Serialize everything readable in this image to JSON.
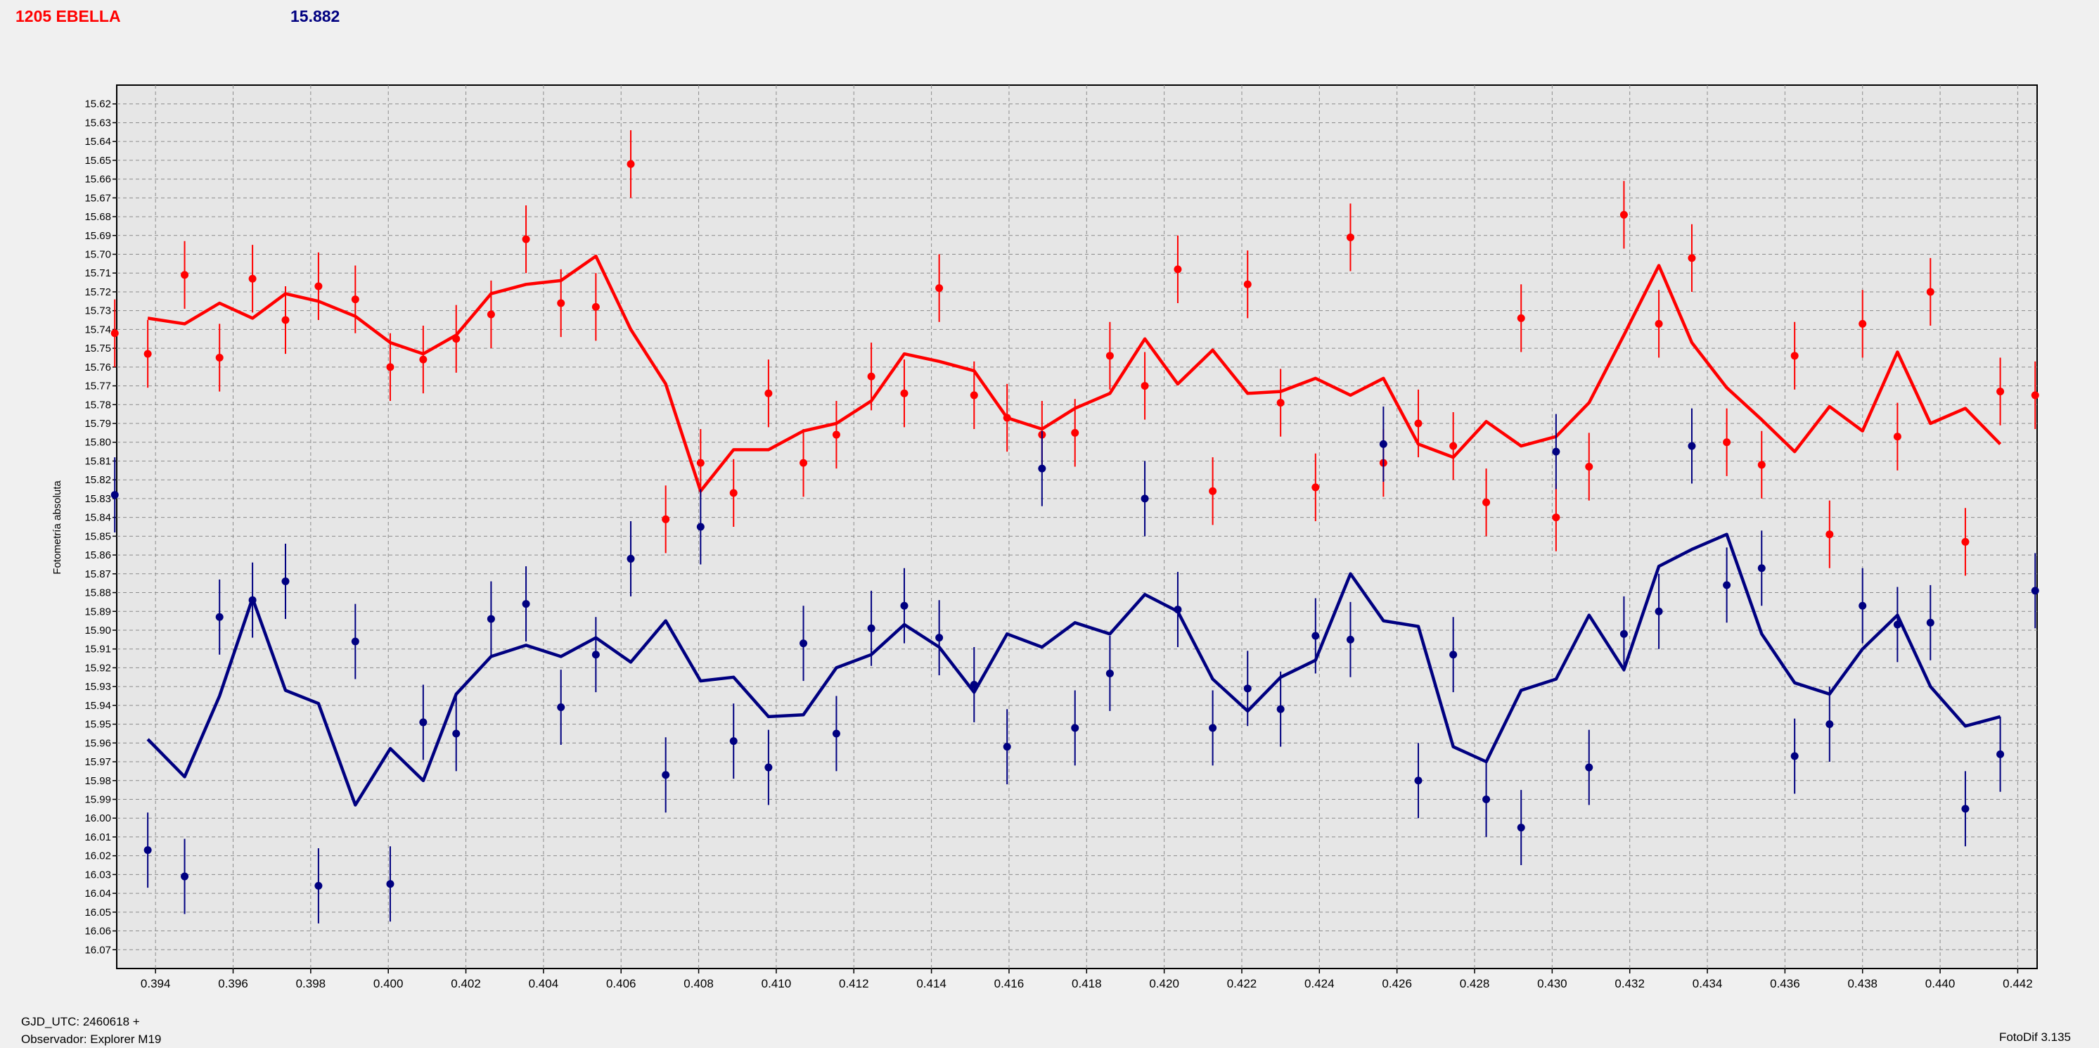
{
  "header": {
    "object_name": "1205 EBELLA",
    "reference_value": "15.882"
  },
  "footer": {
    "line1": "GJD_UTC: 2460618 +",
    "line2": "Observador: Explorer M19",
    "software": "FotoDif 3.135"
  },
  "colors": {
    "series_red": "#ff0000",
    "series_blue": "#000080",
    "grid": "#8c8c8c",
    "plot_bg": "#e6e6e6"
  },
  "chart_data": {
    "type": "scatter",
    "ylabel": "Fotometría absoluta",
    "xlabel": "",
    "xlim": [
      0.393,
      0.4425
    ],
    "ylim": [
      16.08,
      15.61
    ],
    "y_inverted": true,
    "grid": true,
    "x_ticks": [
      "0.394",
      "0.396",
      "0.398",
      "0.400",
      "0.402",
      "0.404",
      "0.406",
      "0.408",
      "0.410",
      "0.412",
      "0.414",
      "0.416",
      "0.418",
      "0.420",
      "0.422",
      "0.424",
      "0.426",
      "0.428",
      "0.430",
      "0.432",
      "0.434",
      "0.436",
      "0.438",
      "0.440",
      "0.442"
    ],
    "y_ticks": [
      "15.62",
      "15.63",
      "15.64",
      "15.65",
      "15.66",
      "15.67",
      "15.68",
      "15.69",
      "15.70",
      "15.71",
      "15.72",
      "15.73",
      "15.74",
      "15.75",
      "15.76",
      "15.77",
      "15.78",
      "15.79",
      "15.80",
      "15.81",
      "15.82",
      "15.83",
      "15.84",
      "15.85",
      "15.86",
      "15.87",
      "15.88",
      "15.89",
      "15.90",
      "15.91",
      "15.92",
      "15.93",
      "15.94",
      "15.95",
      "15.96",
      "15.97",
      "15.98",
      "15.99",
      "16.00",
      "16.01",
      "16.02",
      "16.03",
      "16.04",
      "16.05",
      "16.06",
      "16.07"
    ],
    "series": [
      {
        "color": "#ff0000",
        "error": 0.018,
        "points": [
          [
            0.39295,
            15.742
          ],
          [
            0.3938,
            15.753
          ],
          [
            0.39475,
            15.711
          ],
          [
            0.39565,
            15.755
          ],
          [
            0.3965,
            15.713
          ],
          [
            0.39735,
            15.735
          ],
          [
            0.3982,
            15.717
          ],
          [
            0.39915,
            15.724
          ],
          [
            0.40005,
            15.76
          ],
          [
            0.4009,
            15.756
          ],
          [
            0.40175,
            15.745
          ],
          [
            0.40265,
            15.732
          ],
          [
            0.40355,
            15.692
          ],
          [
            0.40445,
            15.726
          ],
          [
            0.40535,
            15.728
          ],
          [
            0.40625,
            15.652
          ],
          [
            0.40715,
            15.841
          ],
          [
            0.40805,
            15.811
          ],
          [
            0.4089,
            15.827
          ],
          [
            0.4098,
            15.774
          ],
          [
            0.4107,
            15.811
          ],
          [
            0.41155,
            15.796
          ],
          [
            0.41245,
            15.765
          ],
          [
            0.4133,
            15.774
          ],
          [
            0.4142,
            15.718
          ],
          [
            0.4151,
            15.775
          ],
          [
            0.41595,
            15.787
          ],
          [
            0.41685,
            15.796
          ],
          [
            0.4177,
            15.795
          ],
          [
            0.4186,
            15.754
          ],
          [
            0.4195,
            15.77
          ],
          [
            0.42035,
            15.708
          ],
          [
            0.42125,
            15.826
          ],
          [
            0.42215,
            15.716
          ],
          [
            0.423,
            15.779
          ],
          [
            0.4239,
            15.824
          ],
          [
            0.4248,
            15.691
          ],
          [
            0.42565,
            15.811
          ],
          [
            0.42655,
            15.79
          ],
          [
            0.42745,
            15.802
          ],
          [
            0.4283,
            15.832
          ],
          [
            0.4292,
            15.734
          ],
          [
            0.4301,
            15.84
          ],
          [
            0.43095,
            15.813
          ],
          [
            0.43185,
            15.679
          ],
          [
            0.43275,
            15.737
          ],
          [
            0.4336,
            15.702
          ],
          [
            0.4345,
            15.8
          ],
          [
            0.4354,
            15.812
          ],
          [
            0.43625,
            15.754
          ],
          [
            0.43715,
            15.849
          ],
          [
            0.438,
            15.737
          ],
          [
            0.4389,
            15.797
          ],
          [
            0.43975,
            15.72
          ],
          [
            0.44065,
            15.853
          ],
          [
            0.44155,
            15.773
          ],
          [
            0.44245,
            15.775
          ]
        ],
        "line": [
          [
            0.3938,
            15.734
          ],
          [
            0.39475,
            15.737
          ],
          [
            0.39565,
            15.726
          ],
          [
            0.3965,
            15.734
          ],
          [
            0.39735,
            15.721
          ],
          [
            0.3982,
            15.725
          ],
          [
            0.39915,
            15.733
          ],
          [
            0.40005,
            15.747
          ],
          [
            0.4009,
            15.753
          ],
          [
            0.40175,
            15.743
          ],
          [
            0.40265,
            15.721
          ],
          [
            0.40355,
            15.716
          ],
          [
            0.40445,
            15.714
          ],
          [
            0.40535,
            15.701
          ],
          [
            0.40625,
            15.74
          ],
          [
            0.40715,
            15.769
          ],
          [
            0.40805,
            15.826
          ],
          [
            0.4089,
            15.804
          ],
          [
            0.4098,
            15.804
          ],
          [
            0.4107,
            15.794
          ],
          [
            0.41155,
            15.79
          ],
          [
            0.41245,
            15.778
          ],
          [
            0.4133,
            15.753
          ],
          [
            0.4142,
            15.757
          ],
          [
            0.4151,
            15.762
          ],
          [
            0.41595,
            15.787
          ],
          [
            0.41685,
            15.793
          ],
          [
            0.4177,
            15.782
          ],
          [
            0.4186,
            15.774
          ],
          [
            0.4195,
            15.745
          ],
          [
            0.42035,
            15.769
          ],
          [
            0.42125,
            15.751
          ],
          [
            0.42215,
            15.774
          ],
          [
            0.423,
            15.773
          ],
          [
            0.4239,
            15.766
          ],
          [
            0.4248,
            15.775
          ],
          [
            0.42565,
            15.766
          ],
          [
            0.42655,
            15.801
          ],
          [
            0.42745,
            15.808
          ],
          [
            0.4283,
            15.789
          ],
          [
            0.4292,
            15.802
          ],
          [
            0.4301,
            15.797
          ],
          [
            0.43095,
            15.779
          ],
          [
            0.43185,
            15.743
          ],
          [
            0.43275,
            15.706
          ],
          [
            0.4336,
            15.747
          ],
          [
            0.4345,
            15.771
          ],
          [
            0.4354,
            15.788
          ],
          [
            0.43625,
            15.805
          ],
          [
            0.43715,
            15.781
          ],
          [
            0.438,
            15.794
          ],
          [
            0.4389,
            15.752
          ],
          [
            0.43975,
            15.79
          ],
          [
            0.44065,
            15.782
          ],
          [
            0.44155,
            15.801
          ]
        ]
      },
      {
        "color": "#000080",
        "error": 0.02,
        "points": [
          [
            0.39295,
            15.828
          ],
          [
            0.3938,
            16.017
          ],
          [
            0.39475,
            16.031
          ],
          [
            0.39565,
            15.893
          ],
          [
            0.3965,
            15.884
          ],
          [
            0.39735,
            15.874
          ],
          [
            0.3982,
            16.036
          ],
          [
            0.39915,
            15.906
          ],
          [
            0.40005,
            16.035
          ],
          [
            0.4009,
            15.949
          ],
          [
            0.40175,
            15.955
          ],
          [
            0.40265,
            15.894
          ],
          [
            0.40355,
            15.886
          ],
          [
            0.40445,
            15.941
          ],
          [
            0.40535,
            15.913
          ],
          [
            0.40625,
            15.862
          ],
          [
            0.40715,
            15.977
          ],
          [
            0.40805,
            15.845
          ],
          [
            0.4089,
            15.959
          ],
          [
            0.4098,
            15.973
          ],
          [
            0.4107,
            15.907
          ],
          [
            0.41155,
            15.955
          ],
          [
            0.41245,
            15.899
          ],
          [
            0.4133,
            15.887
          ],
          [
            0.4142,
            15.904
          ],
          [
            0.4151,
            15.929
          ],
          [
            0.41595,
            15.962
          ],
          [
            0.41685,
            15.814
          ],
          [
            0.4177,
            15.952
          ],
          [
            0.4186,
            15.923
          ],
          [
            0.4195,
            15.83
          ],
          [
            0.42035,
            15.889
          ],
          [
            0.42125,
            15.952
          ],
          [
            0.42215,
            15.931
          ],
          [
            0.423,
            15.942
          ],
          [
            0.4239,
            15.903
          ],
          [
            0.4248,
            15.905
          ],
          [
            0.42565,
            15.801
          ],
          [
            0.42655,
            15.98
          ],
          [
            0.42745,
            15.913
          ],
          [
            0.4283,
            15.99
          ],
          [
            0.4292,
            16.005
          ],
          [
            0.4301,
            15.805
          ],
          [
            0.43095,
            15.973
          ],
          [
            0.43185,
            15.902
          ],
          [
            0.43275,
            15.89
          ],
          [
            0.4336,
            15.802
          ],
          [
            0.4345,
            15.876
          ],
          [
            0.4354,
            15.867
          ],
          [
            0.43625,
            15.967
          ],
          [
            0.43715,
            15.95
          ],
          [
            0.438,
            15.887
          ],
          [
            0.4389,
            15.897
          ],
          [
            0.43975,
            15.896
          ],
          [
            0.44065,
            15.995
          ],
          [
            0.44155,
            15.966
          ],
          [
            0.44245,
            15.879
          ]
        ],
        "line": [
          [
            0.3938,
            15.958
          ],
          [
            0.39475,
            15.978
          ],
          [
            0.39565,
            15.935
          ],
          [
            0.3965,
            15.883
          ],
          [
            0.39735,
            15.932
          ],
          [
            0.3982,
            15.939
          ],
          [
            0.39915,
            15.993
          ],
          [
            0.40005,
            15.963
          ],
          [
            0.4009,
            15.98
          ],
          [
            0.40175,
            15.934
          ],
          [
            0.40265,
            15.914
          ],
          [
            0.40355,
            15.908
          ],
          [
            0.40445,
            15.914
          ],
          [
            0.40535,
            15.904
          ],
          [
            0.40625,
            15.917
          ],
          [
            0.40715,
            15.895
          ],
          [
            0.40805,
            15.927
          ],
          [
            0.4089,
            15.925
          ],
          [
            0.4098,
            15.946
          ],
          [
            0.4107,
            15.945
          ],
          [
            0.41155,
            15.92
          ],
          [
            0.41245,
            15.913
          ],
          [
            0.4133,
            15.897
          ],
          [
            0.4142,
            15.909
          ],
          [
            0.4151,
            15.933
          ],
          [
            0.41595,
            15.902
          ],
          [
            0.41685,
            15.909
          ],
          [
            0.4177,
            15.896
          ],
          [
            0.4186,
            15.902
          ],
          [
            0.4195,
            15.881
          ],
          [
            0.42035,
            15.89
          ],
          [
            0.42125,
            15.926
          ],
          [
            0.42215,
            15.943
          ],
          [
            0.423,
            15.925
          ],
          [
            0.4239,
            15.916
          ],
          [
            0.4248,
            15.87
          ],
          [
            0.42565,
            15.895
          ],
          [
            0.42655,
            15.898
          ],
          [
            0.42745,
            15.962
          ],
          [
            0.4283,
            15.97
          ],
          [
            0.4292,
            15.932
          ],
          [
            0.4301,
            15.926
          ],
          [
            0.43095,
            15.892
          ],
          [
            0.43185,
            15.921
          ],
          [
            0.43275,
            15.866
          ],
          [
            0.4336,
            15.857
          ],
          [
            0.4345,
            15.849
          ],
          [
            0.4354,
            15.902
          ],
          [
            0.43625,
            15.928
          ],
          [
            0.43715,
            15.934
          ],
          [
            0.438,
            15.91
          ],
          [
            0.4389,
            15.892
          ],
          [
            0.43975,
            15.93
          ],
          [
            0.44065,
            15.951
          ],
          [
            0.44155,
            15.946
          ]
        ]
      }
    ]
  }
}
